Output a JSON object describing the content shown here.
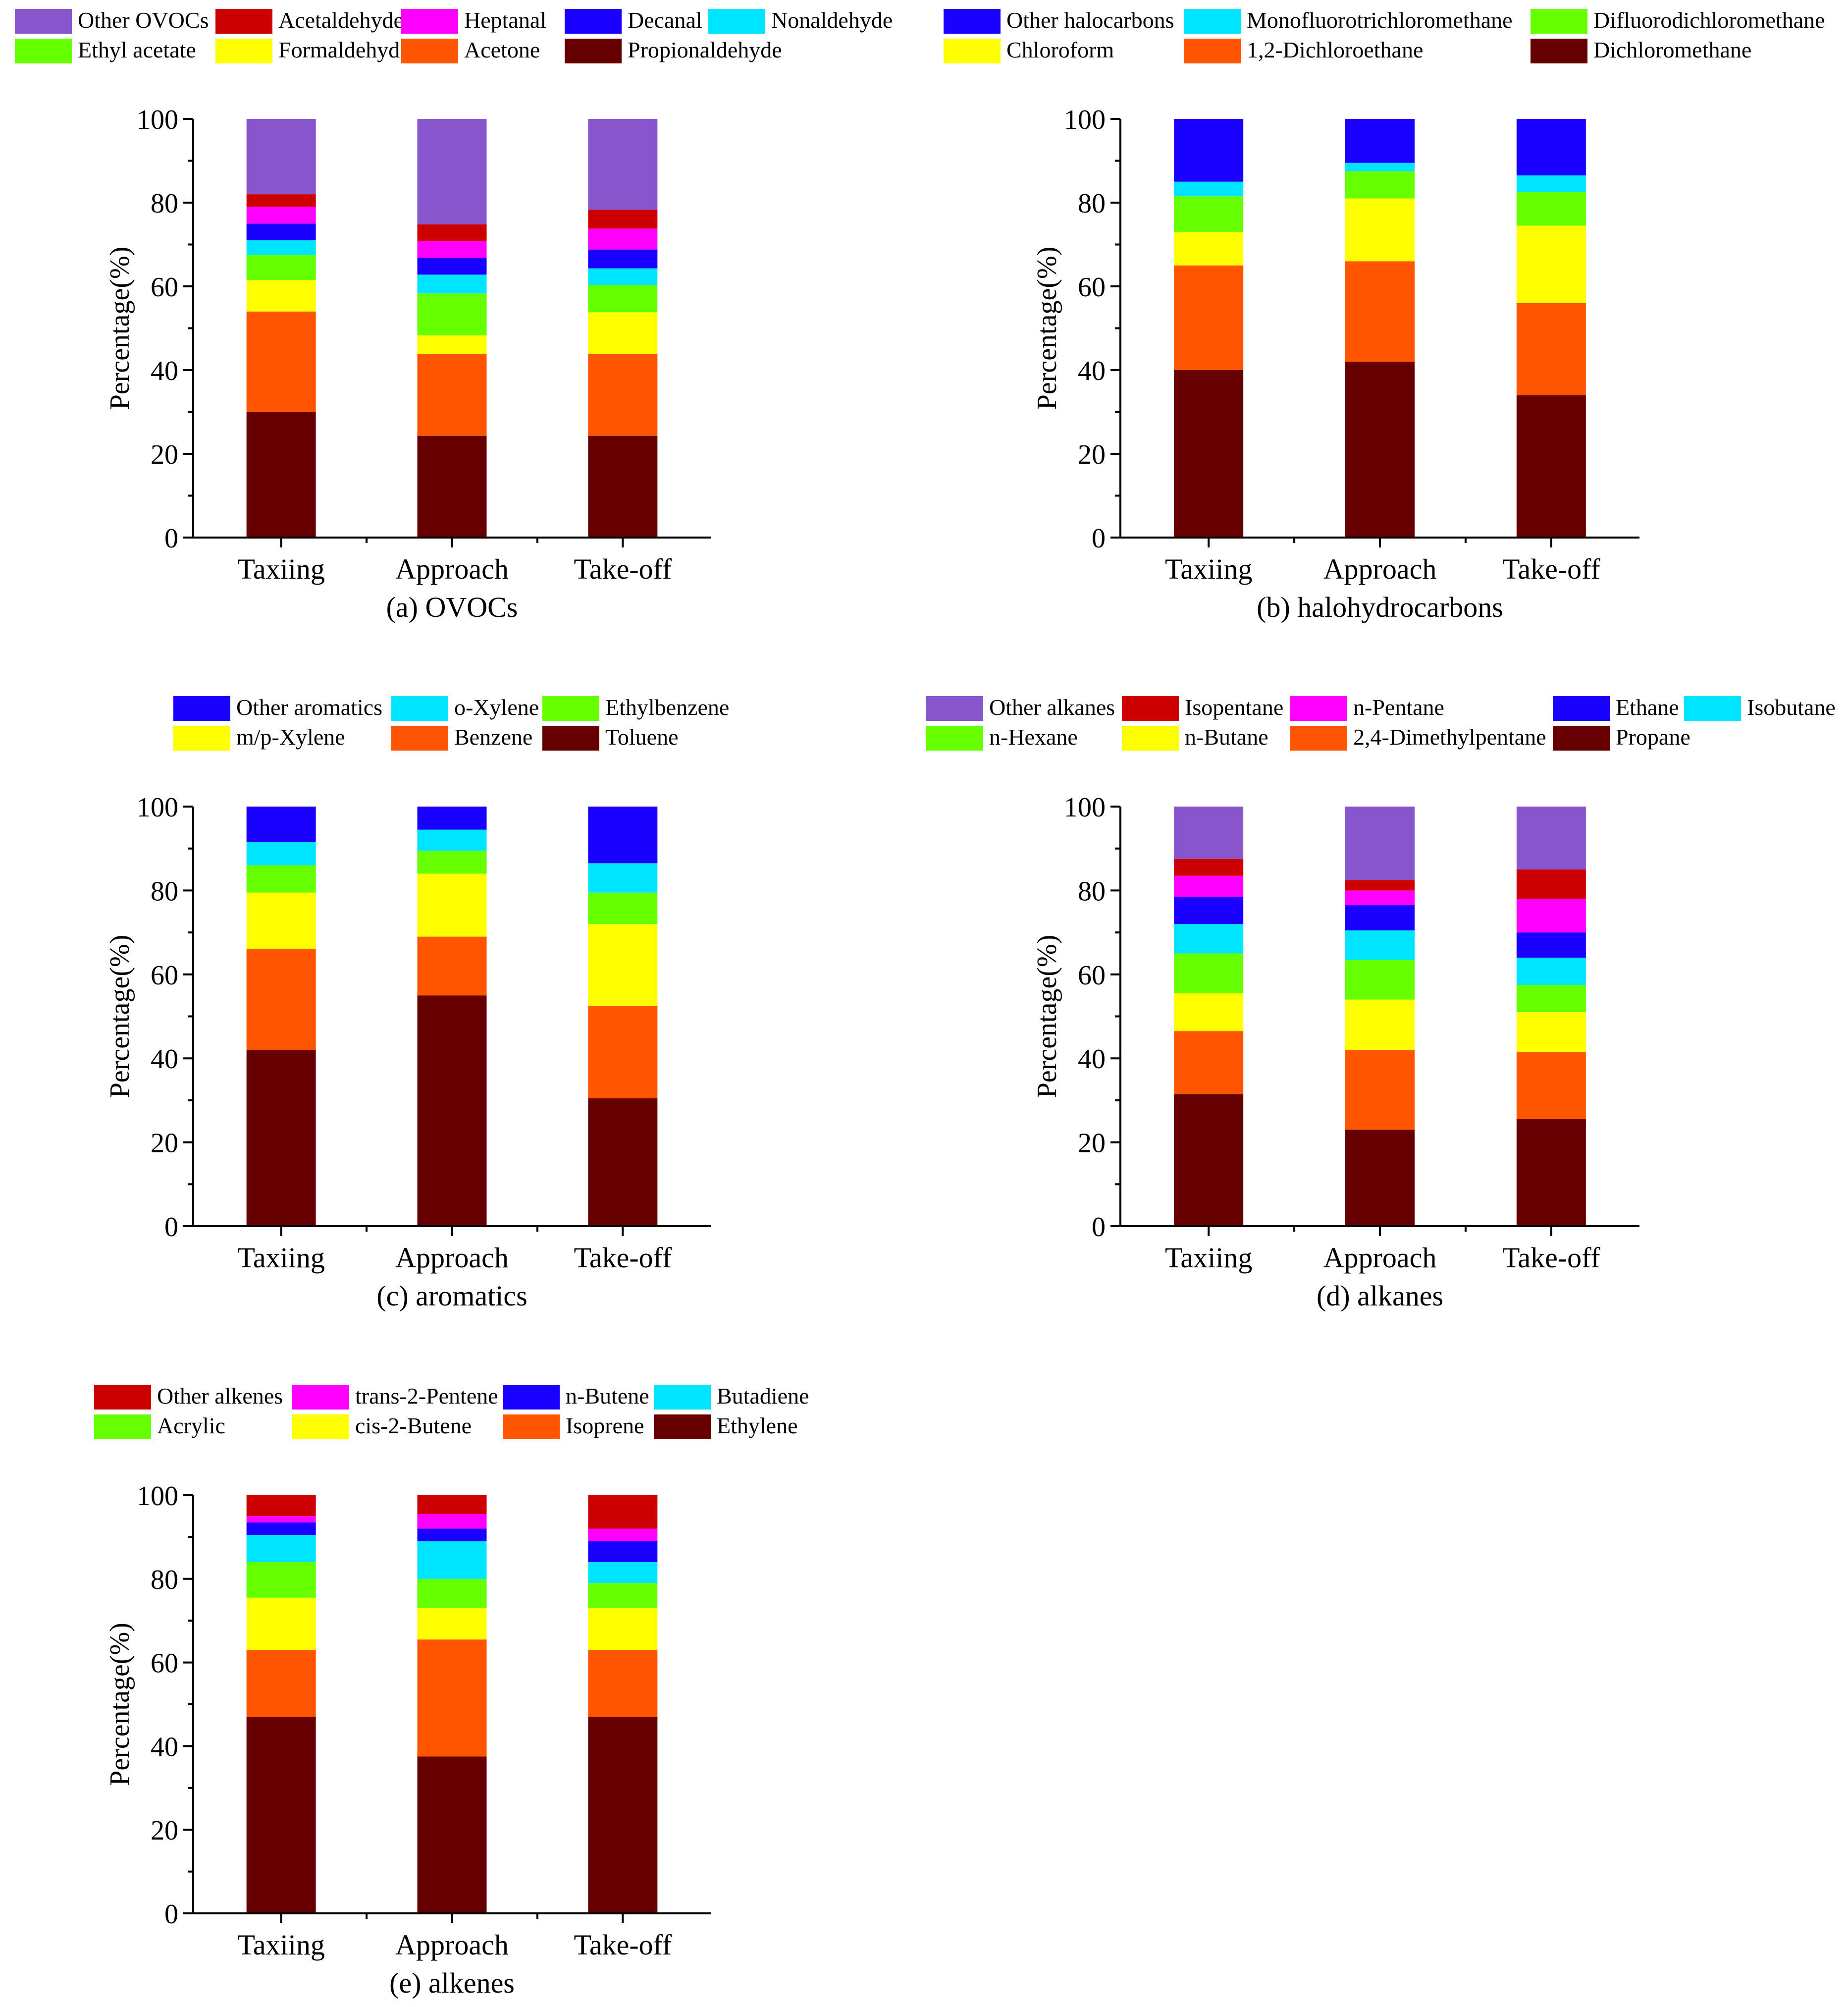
{
  "figure": {
    "categories": [
      "Taxiing",
      "Approach",
      "Take-off"
    ],
    "ylabel": "Percentage(%)"
  },
  "chart_data": [
    {
      "type": "bar",
      "stacked": true,
      "title": "(a) OVOCs",
      "categories": [
        "Taxiing",
        "Approach",
        "Take-off"
      ],
      "xlabel": "",
      "ylabel": "Percentage(%)",
      "ylim": [
        0,
        100
      ],
      "yticks": [
        0,
        20,
        40,
        60,
        80,
        100
      ],
      "grid": false,
      "legend_position": "top",
      "legend_order": [
        "Other OVOCs",
        "Acetaldehyde",
        "Heptanal",
        "Decanal",
        "Nonaldehyde",
        "Ethyl acetate",
        "Formaldehyde",
        "Acetone",
        "Propionaldehyde"
      ],
      "series": [
        {
          "name": "Propionaldehyde",
          "color": "#660000",
          "values": [
            30.0,
            24.3,
            24.3
          ]
        },
        {
          "name": "Acetone",
          "color": "#FF5500",
          "values": [
            24.0,
            19.5,
            19.5
          ]
        },
        {
          "name": "Formaldehyde",
          "color": "#FFFF00",
          "values": [
            7.5,
            4.5,
            10.0
          ]
        },
        {
          "name": "Ethyl acetate",
          "color": "#66FF00",
          "values": [
            6.0,
            10.0,
            6.5
          ]
        },
        {
          "name": "Nonaldehyde",
          "color": "#00E5FF",
          "values": [
            3.5,
            4.5,
            4.0
          ]
        },
        {
          "name": "Decanal",
          "color": "#1A00FF",
          "values": [
            4.0,
            4.0,
            4.5
          ]
        },
        {
          "name": "Heptanal",
          "color": "#FF00FF",
          "values": [
            4.0,
            4.0,
            5.0
          ]
        },
        {
          "name": "Acetaldehyde",
          "color": "#CC0000",
          "values": [
            3.0,
            4.0,
            4.5
          ]
        },
        {
          "name": "Other OVOCs",
          "color": "#8855CC",
          "values": [
            18.0,
            25.2,
            21.7
          ]
        }
      ]
    },
    {
      "type": "bar",
      "stacked": true,
      "title": "(b) halohydrocarbons",
      "categories": [
        "Taxiing",
        "Approach",
        "Take-off"
      ],
      "xlabel": "",
      "ylabel": "Percentage(%)",
      "ylim": [
        0,
        100
      ],
      "yticks": [
        0,
        20,
        40,
        60,
        80,
        100
      ],
      "grid": false,
      "legend_position": "top",
      "legend_order": [
        "Other halocarbons",
        "Monofluorotrichloromethane",
        "Difluorodichloromethane",
        "Chloroform",
        "1,2-Dichloroethane",
        "Dichloromethane"
      ],
      "series": [
        {
          "name": "Dichloromethane",
          "color": "#660000",
          "values": [
            40.0,
            42.0,
            34.0
          ]
        },
        {
          "name": "1,2-Dichloroethane",
          "color": "#FF5500",
          "values": [
            25.0,
            24.0,
            22.0
          ]
        },
        {
          "name": "Chloroform",
          "color": "#FFFF00",
          "values": [
            8.0,
            15.0,
            18.5
          ]
        },
        {
          "name": "Difluorodichloromethane",
          "color": "#66FF00",
          "values": [
            8.5,
            6.5,
            8.0
          ]
        },
        {
          "name": "Monofluorotrichloromethane",
          "color": "#00E5FF",
          "values": [
            3.5,
            2.0,
            4.0
          ]
        },
        {
          "name": "Other halocarbons",
          "color": "#1A00FF",
          "values": [
            15.0,
            10.5,
            13.5
          ]
        }
      ]
    },
    {
      "type": "bar",
      "stacked": true,
      "title": "(c) aromatics",
      "categories": [
        "Taxiing",
        "Approach",
        "Take-off"
      ],
      "xlabel": "",
      "ylabel": "Percentage(%)",
      "ylim": [
        0,
        100
      ],
      "yticks": [
        0,
        20,
        40,
        60,
        80,
        100
      ],
      "grid": false,
      "legend_position": "top",
      "legend_order": [
        "Other aromatics",
        "o-Xylene",
        "Ethylbenzene",
        "m/p-Xylene",
        "Benzene",
        "Toluene"
      ],
      "series": [
        {
          "name": "Toluene",
          "color": "#660000",
          "values": [
            42.0,
            55.0,
            30.5
          ]
        },
        {
          "name": "Benzene",
          "color": "#FF5500",
          "values": [
            24.0,
            14.0,
            22.0
          ]
        },
        {
          "name": "m/p-Xylene",
          "color": "#FFFF00",
          "values": [
            13.5,
            15.0,
            19.5
          ]
        },
        {
          "name": "Ethylbenzene",
          "color": "#66FF00",
          "values": [
            6.5,
            5.5,
            7.5
          ]
        },
        {
          "name": "o-Xylene",
          "color": "#00E5FF",
          "values": [
            5.5,
            5.0,
            7.0
          ]
        },
        {
          "name": "Other aromatics",
          "color": "#1A00FF",
          "values": [
            8.5,
            5.5,
            13.5
          ]
        }
      ]
    },
    {
      "type": "bar",
      "stacked": true,
      "title": "(d) alkanes",
      "categories": [
        "Taxiing",
        "Approach",
        "Take-off"
      ],
      "xlabel": "",
      "ylabel": "Percentage(%)",
      "ylim": [
        0,
        100
      ],
      "yticks": [
        0,
        20,
        40,
        60,
        80,
        100
      ],
      "grid": false,
      "legend_position": "top",
      "legend_order": [
        "Other alkanes",
        "Isopentane",
        "n-Pentane",
        "Ethane",
        "Isobutane",
        "n-Hexane",
        "n-Butane",
        "2,4-Dimethylpentane",
        "Propane"
      ],
      "series": [
        {
          "name": "Propane",
          "color": "#660000",
          "values": [
            31.5,
            23.0,
            25.5
          ]
        },
        {
          "name": "2,4-Dimethylpentane",
          "color": "#FF5500",
          "values": [
            15.0,
            19.0,
            16.0
          ]
        },
        {
          "name": "n-Butane",
          "color": "#FFFF00",
          "values": [
            9.0,
            12.0,
            9.5
          ]
        },
        {
          "name": "n-Hexane",
          "color": "#66FF00",
          "values": [
            9.5,
            9.5,
            6.5
          ]
        },
        {
          "name": "Isobutane",
          "color": "#00E5FF",
          "values": [
            7.0,
            7.0,
            6.5
          ]
        },
        {
          "name": "Ethane",
          "color": "#1A00FF",
          "values": [
            6.5,
            6.0,
            6.0
          ]
        },
        {
          "name": "n-Pentane",
          "color": "#FF00FF",
          "values": [
            5.0,
            3.5,
            8.0
          ]
        },
        {
          "name": "Isopentane",
          "color": "#CC0000",
          "values": [
            4.0,
            2.5,
            7.0
          ]
        },
        {
          "name": "Other alkanes",
          "color": "#8855CC",
          "values": [
            12.5,
            17.5,
            15.0
          ]
        }
      ]
    },
    {
      "type": "bar",
      "stacked": true,
      "title": "(e) alkenes",
      "categories": [
        "Taxiing",
        "Approach",
        "Take-off"
      ],
      "xlabel": "",
      "ylabel": "Percentage(%)",
      "ylim": [
        0,
        100
      ],
      "yticks": [
        0,
        20,
        40,
        60,
        80,
        100
      ],
      "grid": false,
      "legend_position": "top",
      "legend_order": [
        "Other alkenes",
        "trans-2-Pentene",
        "n-Butene",
        "Butadiene",
        "Acrylic",
        "cis-2-Butene",
        "Isoprene",
        "Ethylene"
      ],
      "series": [
        {
          "name": "Ethylene",
          "color": "#660000",
          "values": [
            47.0,
            37.5,
            47.0
          ]
        },
        {
          "name": "Isoprene",
          "color": "#FF5500",
          "values": [
            16.0,
            28.0,
            16.0
          ]
        },
        {
          "name": "cis-2-Butene",
          "color": "#FFFF00",
          "values": [
            12.5,
            7.5,
            10.0
          ]
        },
        {
          "name": "Acrylic",
          "color": "#66FF00",
          "values": [
            8.5,
            7.0,
            6.0
          ]
        },
        {
          "name": "Butadiene",
          "color": "#00E5FF",
          "values": [
            6.5,
            9.0,
            5.0
          ]
        },
        {
          "name": "n-Butene",
          "color": "#1A00FF",
          "values": [
            3.0,
            3.0,
            5.0
          ]
        },
        {
          "name": "trans-2-Pentene",
          "color": "#FF00FF",
          "values": [
            1.5,
            3.5,
            3.0
          ]
        },
        {
          "name": "Other alkenes",
          "color": "#CC0000",
          "values": [
            5.0,
            4.5,
            8.0
          ]
        }
      ]
    }
  ]
}
